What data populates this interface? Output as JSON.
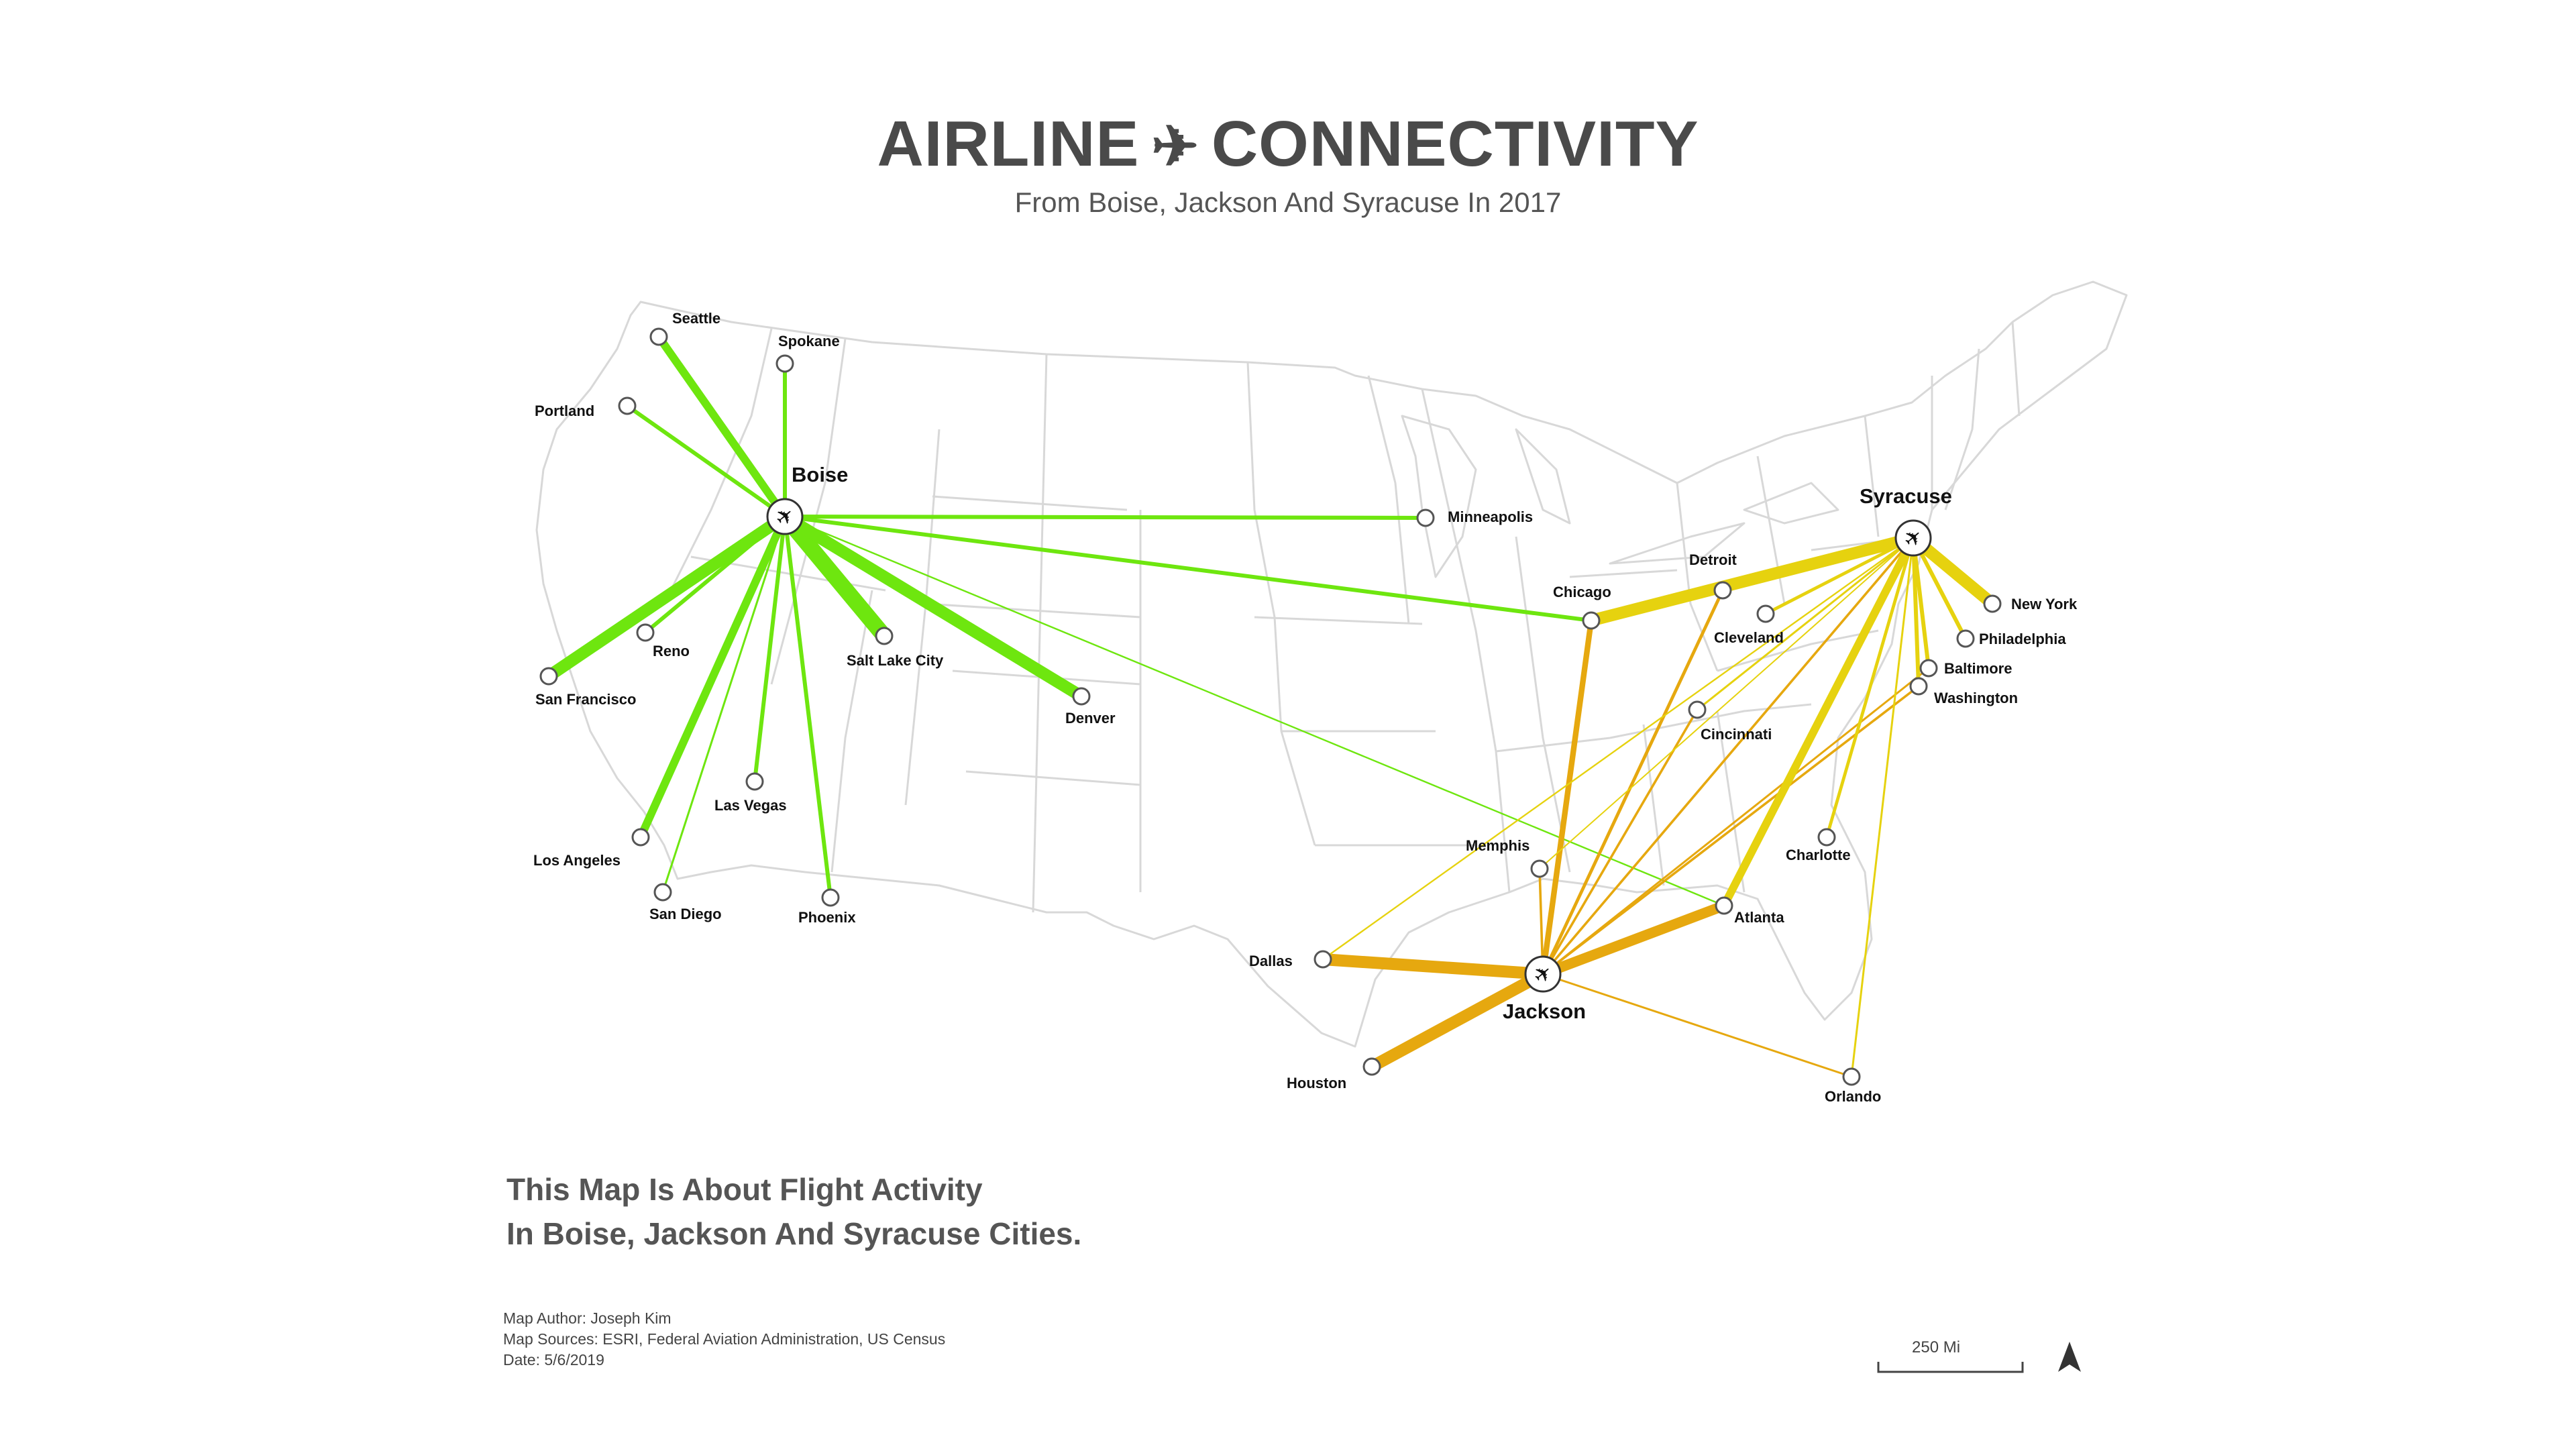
{
  "title": {
    "left": "AIRLINE",
    "icon": "plane-icon",
    "right": "CONNECTIVITY"
  },
  "subtitle": "From Boise, Jackson And Syracuse In 2017",
  "colors": {
    "boise": "#6ee60f",
    "jackson": "#e6a80f",
    "syracuse": "#e6d20f",
    "basemap": "#d6d6d6"
  },
  "hubs": [
    {
      "name": "Boise",
      "key": "boise"
    },
    {
      "name": "Jackson",
      "key": "jackson"
    },
    {
      "name": "Syracuse",
      "key": "syracuse"
    }
  ],
  "cities": [
    "Seattle",
    "Spokane",
    "Portland",
    "Minneapolis",
    "Reno",
    "Salt Lake City",
    "San Francisco",
    "Denver",
    "Las Vegas",
    "Los Angeles",
    "San Diego",
    "Phoenix",
    "Detroit",
    "Chicago",
    "Cleveland",
    "New York",
    "Philadelphia",
    "Baltimore",
    "Washington",
    "Cincinnati",
    "Memphis",
    "Charlotte",
    "Dallas",
    "Atlanta",
    "Houston",
    "Orlando"
  ],
  "routes": {
    "boise": [
      {
        "to": "Seattle",
        "weight": 2
      },
      {
        "to": "Spokane",
        "weight": 1
      },
      {
        "to": "Portland",
        "weight": 1
      },
      {
        "to": "Minneapolis",
        "weight": 1
      },
      {
        "to": "Reno",
        "weight": 1
      },
      {
        "to": "Salt Lake City",
        "weight": 4
      },
      {
        "to": "San Francisco",
        "weight": 3
      },
      {
        "to": "Denver",
        "weight": 3
      },
      {
        "to": "Las Vegas",
        "weight": 1
      },
      {
        "to": "Los Angeles",
        "weight": 2
      },
      {
        "to": "San Diego",
        "weight": 0.5
      },
      {
        "to": "Phoenix",
        "weight": 1
      },
      {
        "to": "Chicago",
        "weight": 1
      },
      {
        "to": "Atlanta",
        "weight": 0.4
      }
    ],
    "jackson": [
      {
        "to": "Chicago",
        "weight": 1.4
      },
      {
        "to": "Detroit",
        "weight": 0.8
      },
      {
        "to": "Cincinnati",
        "weight": 0.6
      },
      {
        "to": "Washington",
        "weight": 0.6
      },
      {
        "to": "Memphis",
        "weight": 0.6
      },
      {
        "to": "Dallas",
        "weight": 3
      },
      {
        "to": "Atlanta",
        "weight": 2.6
      },
      {
        "to": "Houston",
        "weight": 3
      },
      {
        "to": "Orlando",
        "weight": 0.5
      },
      {
        "to": "Baltimore",
        "weight": 0.5
      },
      {
        "to": "Syracuse",
        "weight": 0.6
      }
    ],
    "syracuse": [
      {
        "to": "New York",
        "weight": 3
      },
      {
        "to": "Detroit",
        "weight": 1.2
      },
      {
        "to": "Chicago",
        "weight": 3
      },
      {
        "to": "Cleveland",
        "weight": 0.8
      },
      {
        "to": "Philadelphia",
        "weight": 1
      },
      {
        "to": "Baltimore",
        "weight": 1
      },
      {
        "to": "Washington",
        "weight": 1
      },
      {
        "to": "Cincinnati",
        "weight": 0.5
      },
      {
        "to": "Charlotte",
        "weight": 0.8
      },
      {
        "to": "Atlanta",
        "weight": 2
      },
      {
        "to": "Orlando",
        "weight": 0.5
      },
      {
        "to": "Dallas",
        "weight": 0.4
      },
      {
        "to": "Memphis",
        "weight": 0.3
      }
    ]
  },
  "about": [
    "This Map Is About Flight Activity",
    "In Boise, Jackson And Syracuse Cities."
  ],
  "credits": [
    "Map Author: Joseph Kim",
    "Map Sources: ESRI, Federal Aviation Administration, US Census",
    "Date: 5/6/2019"
  ],
  "scale": {
    "label": "250 Mi"
  },
  "north_arrow": "north-arrow-icon"
}
